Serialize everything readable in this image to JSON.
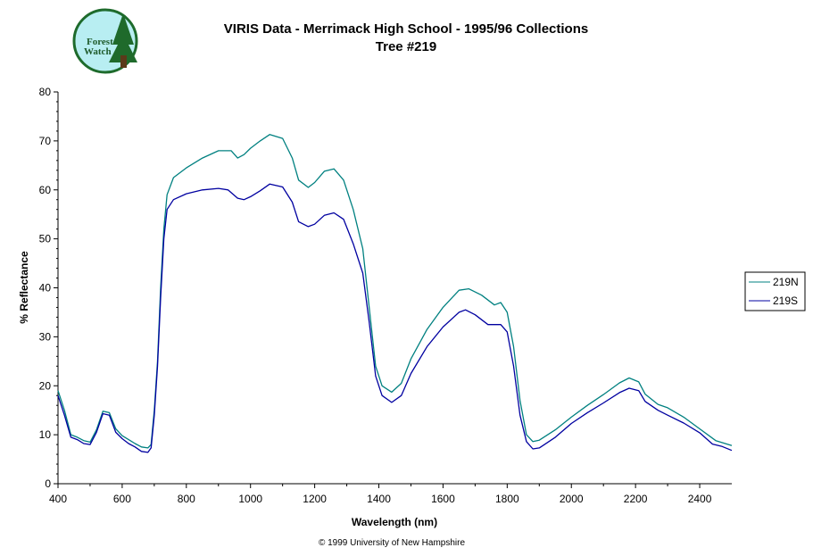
{
  "logo": {
    "text_line1": "Forest",
    "text_line2": "Watch"
  },
  "chart_data": {
    "type": "line",
    "title": "VIRIS Data - Merrimack High School - 1995/96 Collections",
    "subtitle": "Tree #219",
    "xlabel": "Wavelength (nm)",
    "ylabel": "% Reflectance",
    "xlim": [
      400,
      2500
    ],
    "ylim": [
      0,
      80
    ],
    "x_ticks": [
      400,
      600,
      800,
      1000,
      1200,
      1400,
      1600,
      1800,
      2000,
      2200,
      2400
    ],
    "y_ticks": [
      0,
      10,
      20,
      30,
      40,
      50,
      60,
      70,
      80
    ],
    "grid": false,
    "legend_position": "right",
    "series": [
      {
        "name": "219N",
        "color": "#008080",
        "points": [
          [
            400,
            19
          ],
          [
            420,
            15
          ],
          [
            440,
            10
          ],
          [
            460,
            9.5
          ],
          [
            480,
            8.8
          ],
          [
            500,
            8.5
          ],
          [
            520,
            11
          ],
          [
            540,
            14.8
          ],
          [
            560,
            14.5
          ],
          [
            580,
            11.2
          ],
          [
            600,
            9.8
          ],
          [
            620,
            9
          ],
          [
            640,
            8.2
          ],
          [
            660,
            7.5
          ],
          [
            680,
            7.3
          ],
          [
            690,
            8
          ],
          [
            700,
            15
          ],
          [
            710,
            25
          ],
          [
            720,
            40
          ],
          [
            730,
            52
          ],
          [
            740,
            59
          ],
          [
            760,
            62.5
          ],
          [
            800,
            64.5
          ],
          [
            850,
            66.5
          ],
          [
            900,
            68
          ],
          [
            940,
            68
          ],
          [
            960,
            66.5
          ],
          [
            980,
            67.2
          ],
          [
            1000,
            68.5
          ],
          [
            1030,
            70
          ],
          [
            1060,
            71.3
          ],
          [
            1100,
            70.5
          ],
          [
            1130,
            66.5
          ],
          [
            1150,
            62
          ],
          [
            1180,
            60.5
          ],
          [
            1200,
            61.5
          ],
          [
            1230,
            63.8
          ],
          [
            1260,
            64.3
          ],
          [
            1290,
            62
          ],
          [
            1320,
            56
          ],
          [
            1350,
            48
          ],
          [
            1370,
            36
          ],
          [
            1390,
            24
          ],
          [
            1410,
            20
          ],
          [
            1440,
            18.7
          ],
          [
            1470,
            20.5
          ],
          [
            1500,
            25.5
          ],
          [
            1550,
            31.5
          ],
          [
            1600,
            36
          ],
          [
            1650,
            39.5
          ],
          [
            1680,
            39.8
          ],
          [
            1720,
            38.5
          ],
          [
            1760,
            36.5
          ],
          [
            1780,
            37
          ],
          [
            1800,
            35
          ],
          [
            1820,
            28
          ],
          [
            1840,
            17
          ],
          [
            1860,
            10
          ],
          [
            1880,
            8.6
          ],
          [
            1900,
            8.9
          ],
          [
            1950,
            11
          ],
          [
            2000,
            13.6
          ],
          [
            2050,
            16
          ],
          [
            2100,
            18.2
          ],
          [
            2150,
            20.6
          ],
          [
            2180,
            21.6
          ],
          [
            2210,
            20.8
          ],
          [
            2230,
            18.3
          ],
          [
            2270,
            16.2
          ],
          [
            2300,
            15.5
          ],
          [
            2350,
            13.6
          ],
          [
            2400,
            11.2
          ],
          [
            2450,
            8.8
          ],
          [
            2500,
            7.8
          ]
        ]
      },
      {
        "name": "219S",
        "color": "#0000a0",
        "points": [
          [
            400,
            18
          ],
          [
            420,
            14
          ],
          [
            440,
            9.5
          ],
          [
            460,
            9
          ],
          [
            480,
            8.2
          ],
          [
            500,
            8
          ],
          [
            520,
            10.5
          ],
          [
            540,
            14.3
          ],
          [
            560,
            14
          ],
          [
            580,
            10.5
          ],
          [
            600,
            9.2
          ],
          [
            620,
            8.2
          ],
          [
            640,
            7.5
          ],
          [
            660,
            6.6
          ],
          [
            680,
            6.4
          ],
          [
            690,
            7.3
          ],
          [
            700,
            14
          ],
          [
            710,
            24
          ],
          [
            720,
            38
          ],
          [
            730,
            50
          ],
          [
            740,
            56
          ],
          [
            760,
            58
          ],
          [
            800,
            59.2
          ],
          [
            850,
            60
          ],
          [
            900,
            60.3
          ],
          [
            930,
            60
          ],
          [
            960,
            58.3
          ],
          [
            980,
            58
          ],
          [
            1000,
            58.6
          ],
          [
            1030,
            59.8
          ],
          [
            1060,
            61.2
          ],
          [
            1100,
            60.6
          ],
          [
            1130,
            57.5
          ],
          [
            1150,
            53.5
          ],
          [
            1180,
            52.5
          ],
          [
            1200,
            53
          ],
          [
            1230,
            54.8
          ],
          [
            1260,
            55.3
          ],
          [
            1290,
            54
          ],
          [
            1320,
            49
          ],
          [
            1350,
            43
          ],
          [
            1370,
            33
          ],
          [
            1390,
            22
          ],
          [
            1410,
            18
          ],
          [
            1440,
            16.6
          ],
          [
            1470,
            18
          ],
          [
            1500,
            22.5
          ],
          [
            1550,
            28
          ],
          [
            1600,
            32
          ],
          [
            1650,
            35
          ],
          [
            1670,
            35.5
          ],
          [
            1700,
            34.5
          ],
          [
            1740,
            32.5
          ],
          [
            1780,
            32.5
          ],
          [
            1800,
            31
          ],
          [
            1820,
            24
          ],
          [
            1840,
            14
          ],
          [
            1860,
            8.6
          ],
          [
            1880,
            7.1
          ],
          [
            1900,
            7.3
          ],
          [
            1950,
            9.5
          ],
          [
            2000,
            12.3
          ],
          [
            2050,
            14.5
          ],
          [
            2100,
            16.5
          ],
          [
            2150,
            18.6
          ],
          [
            2180,
            19.5
          ],
          [
            2210,
            19
          ],
          [
            2230,
            16.8
          ],
          [
            2270,
            15
          ],
          [
            2300,
            14
          ],
          [
            2350,
            12.4
          ],
          [
            2400,
            10.4
          ],
          [
            2440,
            8.1
          ],
          [
            2470,
            7.6
          ],
          [
            2500,
            6.8
          ]
        ]
      }
    ]
  },
  "footer": {
    "copyright": "© 1999 University of New Hampshire"
  }
}
